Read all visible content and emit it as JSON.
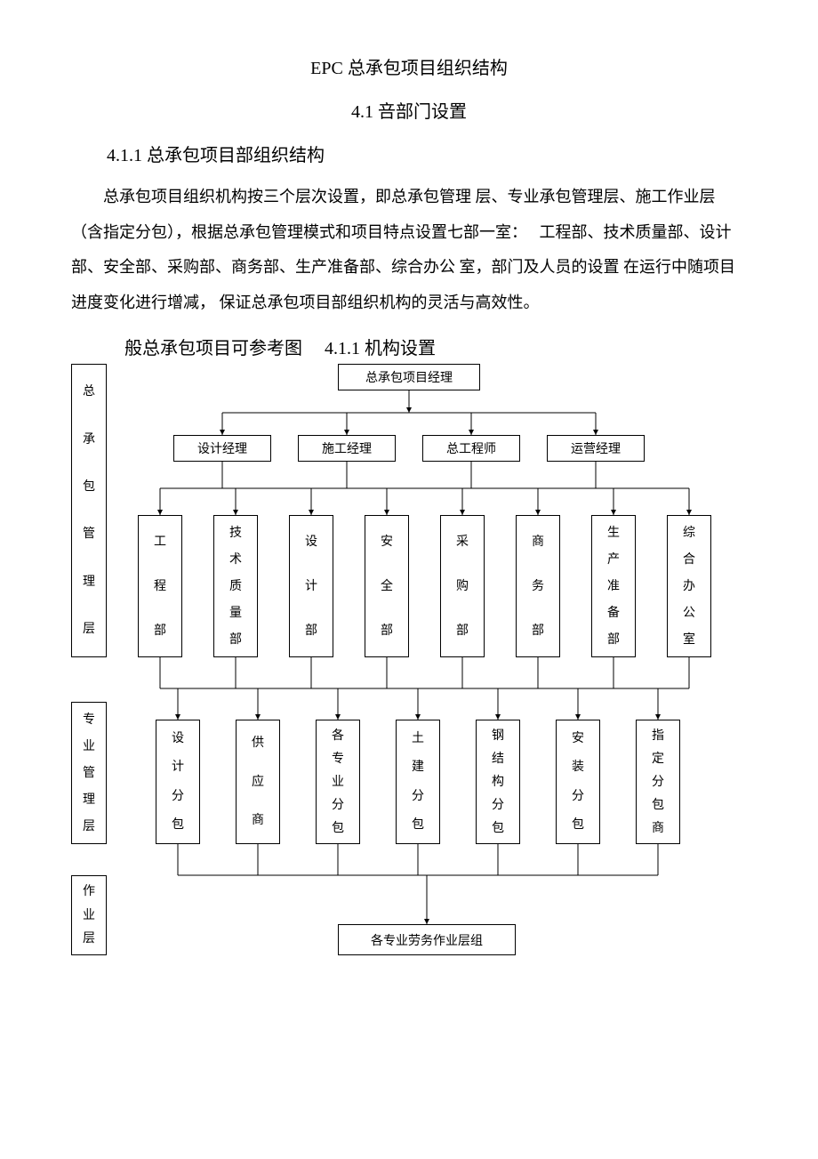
{
  "title": "EPC 总承包项目组织结构",
  "subtitle": "4.1 咅部门设置",
  "section_heading": "4.1.1 总承包项目部组织结构",
  "paragraph": "总承包项目组织机构按三个层次设置，即总承包管理 层、专业承包管理层、施工作业层　　　（含指定分包），根据总承包管理模式和项目特点设置七部一室：　 工程部、技术质量部、设计部、安全部、采购部、商务部、生产准备部、综合办公 室，部门及人员的设置  在运行中随项目进度变化进行增减，  保证总承包项目部组织机构的灵活与高效性。",
  "ref_line": "般总承包项目可参考图　 4.1.1 机构设置",
  "chart": {
    "type": "flowchart",
    "line_color": "#000000",
    "line_width": 1,
    "arrow_size": 6,
    "font_size": 14,
    "background": "#ffffff",
    "side_labels": {
      "l1": [
        "总",
        "承",
        "包",
        "管",
        "理",
        "层"
      ],
      "l2": [
        "专",
        "业",
        "管",
        "理",
        "层"
      ],
      "l3": [
        "作",
        "业",
        "层"
      ]
    },
    "top": "总承包项目经理",
    "row2": [
      "设计经理",
      "施工经理",
      "总工程师",
      "运营经理"
    ],
    "row3": [
      [
        "工",
        "程",
        "部"
      ],
      [
        "技",
        "术",
        "质",
        "量",
        "部"
      ],
      [
        "设",
        "计",
        "部"
      ],
      [
        "安",
        "全",
        "部"
      ],
      [
        "采",
        "购",
        "部"
      ],
      [
        "商",
        "务",
        "部"
      ],
      [
        "生",
        "产",
        "准",
        "备",
        "部"
      ],
      [
        "综",
        "合",
        "办",
        "公",
        "室"
      ]
    ],
    "row4": [
      [
        "设",
        "计",
        "分",
        "包"
      ],
      [
        "供",
        "应",
        "商"
      ],
      [
        "各",
        "专",
        "业",
        "分",
        "包"
      ],
      [
        "土",
        "建",
        "分",
        "包"
      ],
      [
        "钢",
        "结",
        "构",
        "分",
        "包"
      ],
      [
        "安",
        "装",
        "分",
        "包"
      ],
      [
        "指",
        "定",
        "分",
        "包",
        "商"
      ]
    ],
    "bottom": "各专业劳务作业层组"
  }
}
